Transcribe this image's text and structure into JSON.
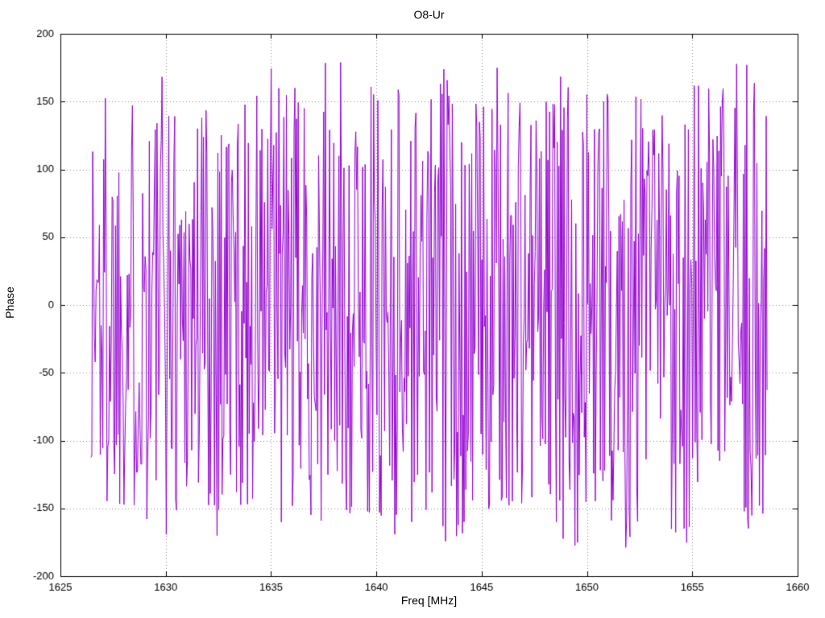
{
  "chart_data": {
    "type": "line",
    "title": "O8-Ur",
    "xlabel": "Freq [MHz]",
    "ylabel": "Phase",
    "xlim": [
      1625,
      1660
    ],
    "ylim": [
      -200,
      200
    ],
    "xticks": [
      1625,
      1630,
      1635,
      1640,
      1645,
      1650,
      1655,
      1660
    ],
    "yticks": [
      -200,
      -150,
      -100,
      -50,
      0,
      50,
      100,
      150,
      200
    ],
    "grid": true,
    "grid_style": "dotted",
    "grid_color": "#8a8a8a",
    "border_color": "#000000",
    "line_color": "#9400d3",
    "background": "#ffffff",
    "legend": "none",
    "description": "Dense noisy phase-vs-frequency trace; phase values jump pseudo-randomly across nearly the full -180..180 degree range between adjacent frequency samples",
    "series": [
      {
        "name": "phase",
        "x_start": 1626.45,
        "x_end": 1658.55,
        "y_min": -180,
        "y_max": 182,
        "n_points": 800,
        "generator": {
          "kind": "uniform-random-phase",
          "seed": 1337
        }
      }
    ]
  }
}
